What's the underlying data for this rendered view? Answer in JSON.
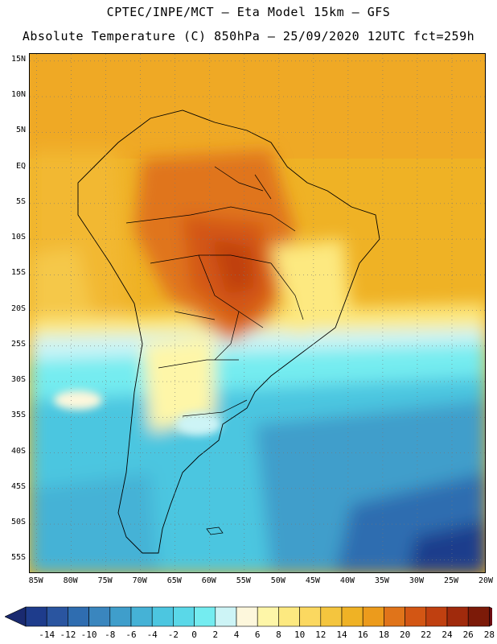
{
  "header": {
    "line1": "CPTEC/INPE/MCT –  Eta Model 15km – GFS",
    "line2": "Absolute Temperature (C) 850hPa – 25/09/2020 12UTC fct=259h"
  },
  "map": {
    "region": "South America",
    "variable": "Absolute Temperature (C) 850hPa",
    "lat_labels": [
      "15N",
      "10N",
      "5N",
      "EQ",
      "5S",
      "10S",
      "15S",
      "20S",
      "25S",
      "30S",
      "35S",
      "40S",
      "45S",
      "50S",
      "55S"
    ],
    "lon_labels": [
      "85W",
      "80W",
      "75W",
      "70W",
      "65W",
      "60W",
      "55W",
      "50W",
      "45W",
      "40W",
      "35W",
      "30W",
      "25W",
      "20W"
    ],
    "lat_range": [
      -57,
      16
    ],
    "lon_range": [
      -86,
      -20
    ]
  },
  "colorbar": {
    "labels": [
      "-14",
      "-12",
      "-10",
      "-8",
      "-6",
      "-4",
      "-2",
      "0",
      "2",
      "4",
      "6",
      "8",
      "10",
      "12",
      "14",
      "16",
      "18",
      "20",
      "22",
      "24",
      "26",
      "28"
    ],
    "colors": [
      "#1e3c8c",
      "#2a55a0",
      "#2f6db0",
      "#3a86be",
      "#3f9ecb",
      "#45b2d6",
      "#4cc6e0",
      "#5ad8e8",
      "#74ecf0",
      "#cdf4f6",
      "#fdf7dc",
      "#fef6a8",
      "#fde980",
      "#fbd860",
      "#f4c53e",
      "#efb225",
      "#ec9b1c",
      "#e0741a",
      "#d35614",
      "#c04010",
      "#a02a0c",
      "#7c1a08"
    ],
    "arrow_low": "#1a2a70",
    "arrow_high": "#6a0a10"
  }
}
